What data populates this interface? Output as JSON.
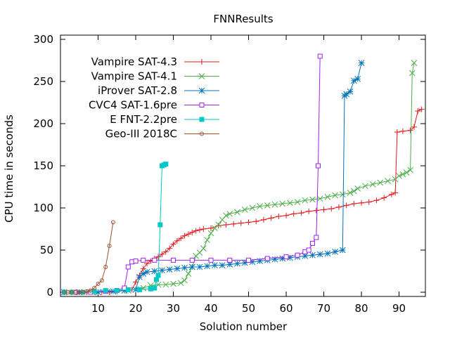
{
  "chart_data": {
    "type": "line",
    "title": "FNNResults",
    "xlabel": "Solution number",
    "ylabel": "CPU time in seconds",
    "xlim": [
      0,
      97
    ],
    "ylim": [
      -5,
      305
    ],
    "xticks": [
      10,
      20,
      30,
      40,
      50,
      60,
      70,
      80,
      90
    ],
    "yticks": [
      0,
      50,
      100,
      150,
      200,
      250,
      300
    ],
    "grid": false,
    "legend_position": "top-left",
    "series": [
      {
        "name": "Vampire SAT-4.3",
        "color": "#e41a1c",
        "marker": "plus",
        "points": [
          [
            1,
            0
          ],
          [
            3,
            0
          ],
          [
            5,
            0
          ],
          [
            7,
            0
          ],
          [
            9,
            0
          ],
          [
            11,
            0
          ],
          [
            13,
            0
          ],
          [
            15,
            1
          ],
          [
            17,
            2
          ],
          [
            19,
            3
          ],
          [
            20,
            12
          ],
          [
            21,
            20
          ],
          [
            22,
            28
          ],
          [
            23,
            34
          ],
          [
            24,
            37
          ],
          [
            25,
            40
          ],
          [
            26,
            42
          ],
          [
            27,
            45
          ],
          [
            28,
            48
          ],
          [
            29,
            52
          ],
          [
            30,
            57
          ],
          [
            31,
            61
          ],
          [
            32,
            64
          ],
          [
            33,
            67
          ],
          [
            34,
            69
          ],
          [
            35,
            71
          ],
          [
            36,
            73
          ],
          [
            37,
            74
          ],
          [
            38,
            75
          ],
          [
            40,
            76
          ],
          [
            42,
            79
          ],
          [
            44,
            80
          ],
          [
            46,
            81
          ],
          [
            48,
            82
          ],
          [
            50,
            83
          ],
          [
            52,
            84
          ],
          [
            54,
            86
          ],
          [
            56,
            88
          ],
          [
            58,
            90
          ],
          [
            60,
            91
          ],
          [
            62,
            93
          ],
          [
            64,
            94
          ],
          [
            66,
            96
          ],
          [
            68,
            97
          ],
          [
            70,
            98
          ],
          [
            72,
            99
          ],
          [
            74,
            101
          ],
          [
            76,
            103
          ],
          [
            78,
            105
          ],
          [
            80,
            106
          ],
          [
            82,
            107
          ],
          [
            84,
            109
          ],
          [
            86,
            112
          ],
          [
            88,
            116
          ],
          [
            89,
            118
          ],
          [
            89.5,
            190
          ],
          [
            91,
            191
          ],
          [
            93,
            192
          ],
          [
            94,
            196
          ],
          [
            95,
            215
          ],
          [
            96,
            217
          ]
        ]
      },
      {
        "name": "Vampire SAT-4.1",
        "color": "#4daf4a",
        "marker": "cross",
        "points": [
          [
            1,
            0
          ],
          [
            5,
            0
          ],
          [
            10,
            0
          ],
          [
            14,
            1
          ],
          [
            18,
            2
          ],
          [
            22,
            5
          ],
          [
            24,
            8
          ],
          [
            26,
            9
          ],
          [
            28,
            9
          ],
          [
            30,
            10
          ],
          [
            32,
            11
          ],
          [
            33,
            14
          ],
          [
            34,
            22
          ],
          [
            35,
            30
          ],
          [
            36,
            43
          ],
          [
            37,
            47
          ],
          [
            38,
            52
          ],
          [
            39,
            62
          ],
          [
            40,
            70
          ],
          [
            41,
            76
          ],
          [
            42,
            80
          ],
          [
            43,
            86
          ],
          [
            44,
            91
          ],
          [
            45,
            93
          ],
          [
            47,
            95
          ],
          [
            49,
            98
          ],
          [
            51,
            100
          ],
          [
            53,
            102
          ],
          [
            55,
            103
          ],
          [
            57,
            104
          ],
          [
            59,
            105
          ],
          [
            61,
            106
          ],
          [
            63,
            107
          ],
          [
            65,
            109
          ],
          [
            67,
            110
          ],
          [
            69,
            111
          ],
          [
            71,
            113
          ],
          [
            73,
            115
          ],
          [
            75,
            116
          ],
          [
            77,
            118
          ],
          [
            78,
            120
          ],
          [
            79,
            123
          ],
          [
            81,
            126
          ],
          [
            83,
            128
          ],
          [
            85,
            130
          ],
          [
            87,
            132
          ],
          [
            89,
            134
          ],
          [
            90,
            138
          ],
          [
            91,
            140
          ],
          [
            92,
            142
          ],
          [
            93,
            145
          ],
          [
            93.5,
            260
          ],
          [
            94,
            272
          ]
        ]
      },
      {
        "name": "iProver SAT-2.8",
        "color": "#0072bd",
        "marker": "star",
        "points": [
          [
            1,
            0
          ],
          [
            5,
            0
          ],
          [
            10,
            0
          ],
          [
            14,
            1
          ],
          [
            17,
            2
          ],
          [
            20,
            3
          ],
          [
            21,
            18
          ],
          [
            22,
            22
          ],
          [
            23,
            24
          ],
          [
            25,
            25
          ],
          [
            27,
            26
          ],
          [
            29,
            27
          ],
          [
            31,
            28
          ],
          [
            33,
            29
          ],
          [
            35,
            30
          ],
          [
            37,
            30
          ],
          [
            39,
            31
          ],
          [
            41,
            32
          ],
          [
            43,
            32
          ],
          [
            45,
            33
          ],
          [
            47,
            34
          ],
          [
            49,
            35
          ],
          [
            51,
            36
          ],
          [
            53,
            37
          ],
          [
            55,
            38
          ],
          [
            57,
            39
          ],
          [
            59,
            40
          ],
          [
            61,
            41
          ],
          [
            63,
            42
          ],
          [
            65,
            43
          ],
          [
            67,
            44
          ],
          [
            69,
            45
          ],
          [
            71,
            46
          ],
          [
            73,
            48
          ],
          [
            75,
            50
          ],
          [
            75.5,
            233
          ],
          [
            76,
            235
          ],
          [
            77,
            238
          ],
          [
            78,
            251
          ],
          [
            79,
            253
          ],
          [
            80,
            272
          ]
        ]
      },
      {
        "name": "CVC4 SAT-1.6pre",
        "color": "#a020f0",
        "marker": "square-open",
        "points": [
          [
            1,
            0
          ],
          [
            4,
            0
          ],
          [
            8,
            0
          ],
          [
            12,
            1
          ],
          [
            15,
            2
          ],
          [
            17,
            5
          ],
          [
            18,
            30
          ],
          [
            19,
            36
          ],
          [
            20,
            37
          ],
          [
            22,
            38
          ],
          [
            25,
            38
          ],
          [
            30,
            38
          ],
          [
            35,
            38
          ],
          [
            40,
            38
          ],
          [
            45,
            38
          ],
          [
            50,
            38
          ],
          [
            55,
            40
          ],
          [
            60,
            42
          ],
          [
            63,
            44
          ],
          [
            65,
            48
          ],
          [
            66,
            50
          ],
          [
            67,
            58
          ],
          [
            68,
            65
          ],
          [
            68.5,
            150
          ],
          [
            69,
            280
          ]
        ]
      },
      {
        "name": "E FNT-2.2pre",
        "color": "#00c8c8",
        "marker": "square-filled",
        "points": [
          [
            1,
            0
          ],
          [
            3,
            0
          ],
          [
            6,
            0
          ],
          [
            9,
            1
          ],
          [
            12,
            2
          ],
          [
            15,
            2
          ],
          [
            18,
            3
          ],
          [
            21,
            3
          ],
          [
            24,
            4
          ],
          [
            25,
            5
          ],
          [
            25.5,
            15
          ],
          [
            26,
            20
          ],
          [
            26.5,
            80
          ],
          [
            27,
            150
          ],
          [
            27.5,
            151
          ],
          [
            28,
            152
          ]
        ]
      },
      {
        "name": "Geo-III 2018C",
        "color": "#a0522d",
        "marker": "circle",
        "points": [
          [
            1,
            0
          ],
          [
            2,
            0
          ],
          [
            3,
            0
          ],
          [
            4,
            0
          ],
          [
            5,
            0
          ],
          [
            6,
            0
          ],
          [
            7,
            1
          ],
          [
            8,
            2
          ],
          [
            9,
            5
          ],
          [
            10,
            10
          ],
          [
            11,
            14
          ],
          [
            12,
            30
          ],
          [
            13,
            55
          ],
          [
            14,
            83
          ]
        ]
      }
    ]
  }
}
